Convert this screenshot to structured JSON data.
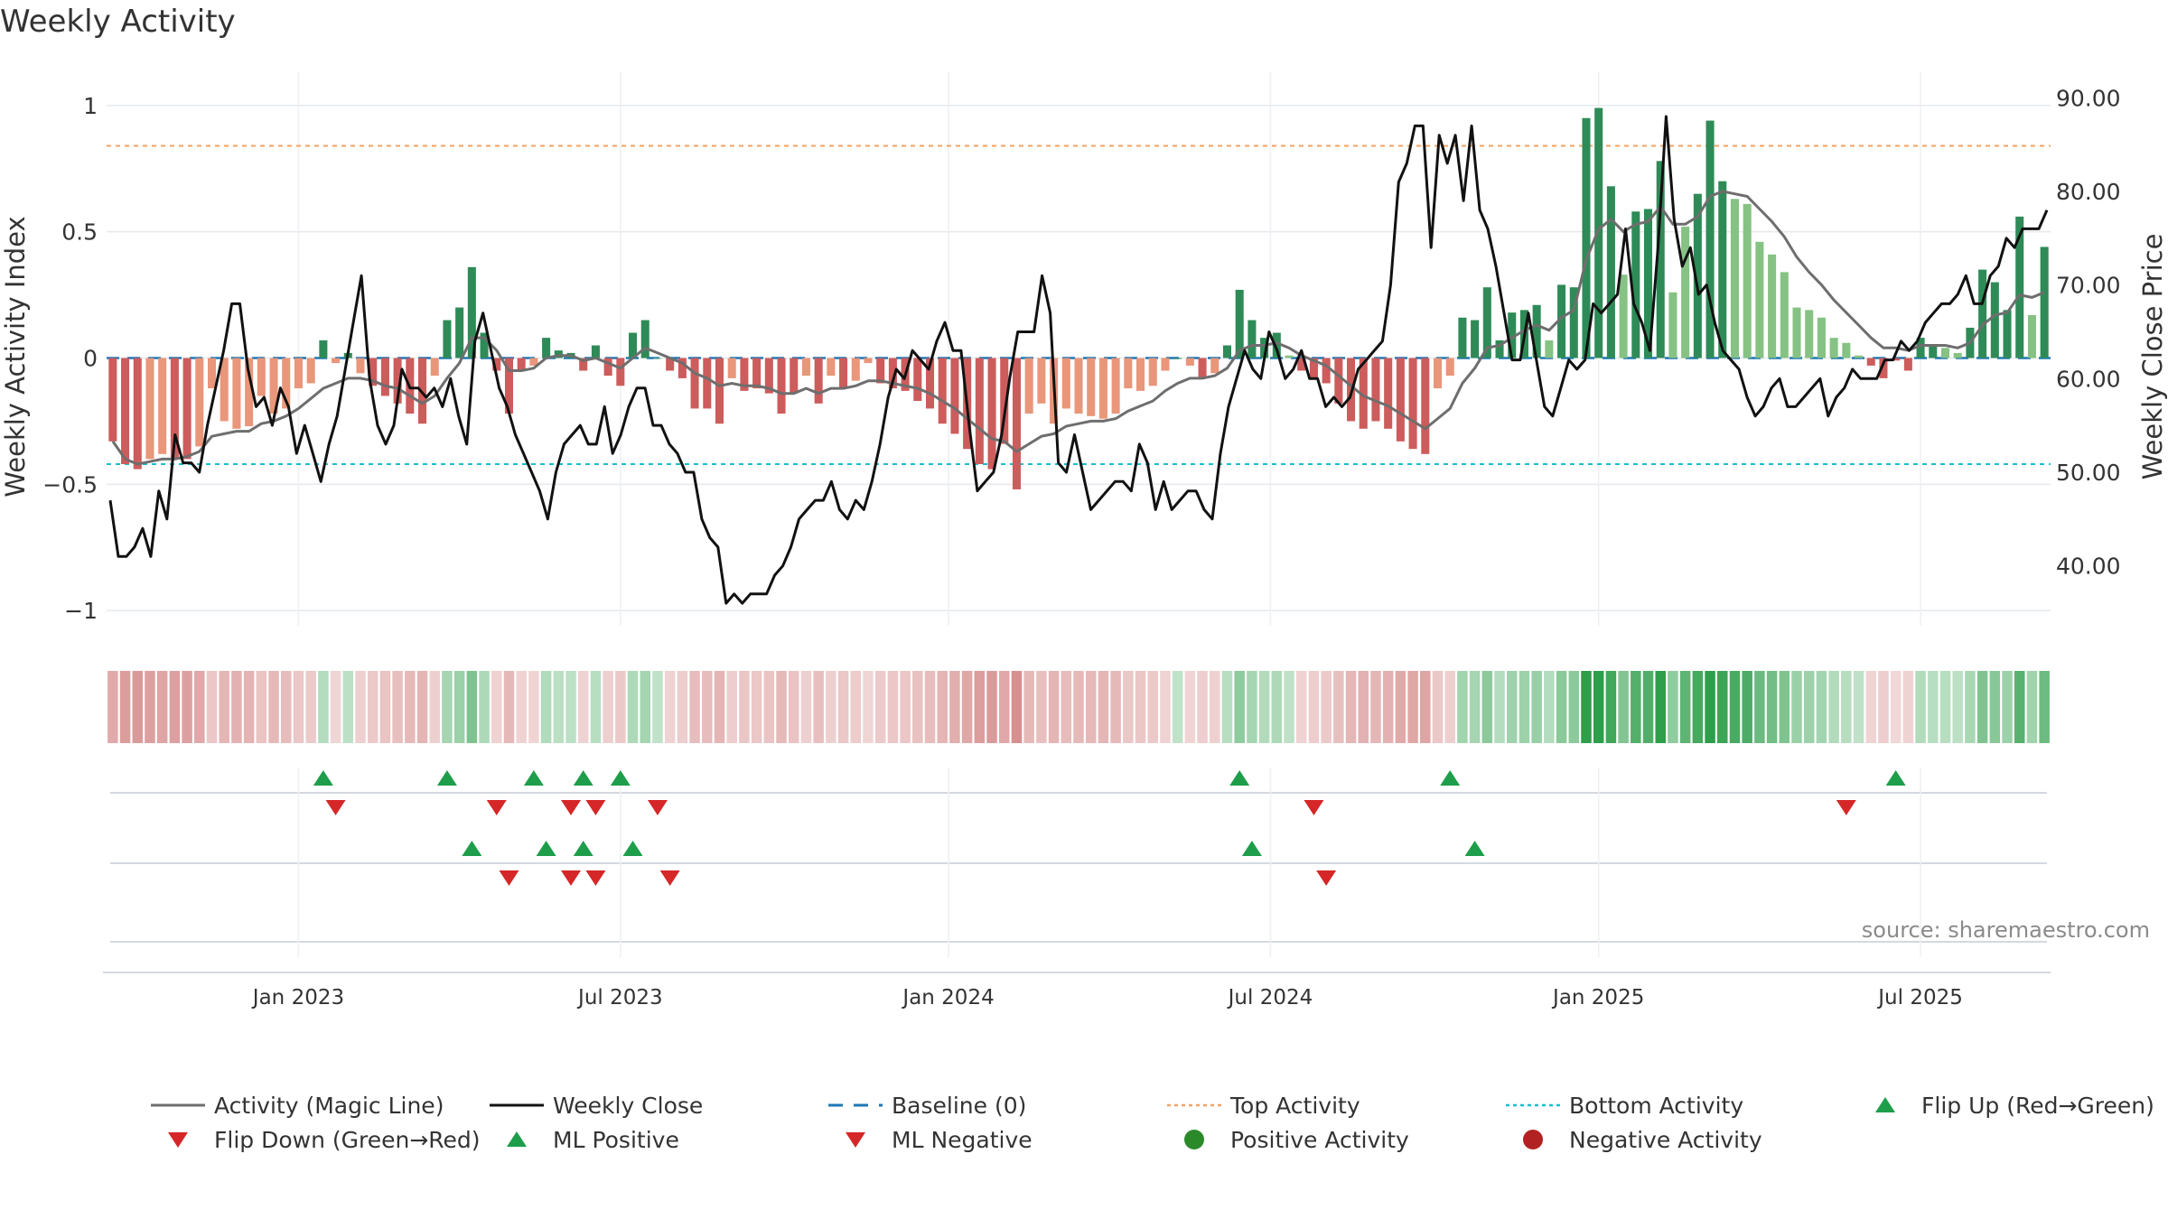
{
  "chart_data": {
    "type": "bar",
    "title": "Weekly Activity",
    "source": "source: sharemaestro.com",
    "ylabel_left": "Weekly Activity Index",
    "ylabel_right": "Weekly Close Price",
    "left_axis": {
      "range": [
        -1.06,
        1.06
      ],
      "ticks": [
        1,
        0.5,
        0,
        -0.5,
        -1
      ],
      "tick_labels": [
        "1",
        "0.5",
        "0",
        "−0.5",
        "−1"
      ]
    },
    "right_axis": {
      "range": [
        33.6,
        90.8
      ],
      "ticks": [
        90,
        80,
        70,
        60,
        50,
        40
      ],
      "tick_labels": [
        "90.00",
        "80.00",
        "70.00",
        "60.00",
        "50.00",
        "40.00"
      ]
    },
    "time_axis": {
      "first_week_index": 0,
      "ticks": [
        {
          "label": "Jan 2023",
          "week": 15
        },
        {
          "label": "Jul 2023",
          "week": 41
        },
        {
          "label": "Jan 2024",
          "week": 67.5
        },
        {
          "label": "Jul 2024",
          "week": 93.5
        },
        {
          "label": "Jan 2025",
          "week": 120
        },
        {
          "label": "Jul 2025",
          "week": 146
        }
      ]
    },
    "reference_lines": {
      "baseline": 0,
      "top_activity": 0.84,
      "bottom_activity": -0.42
    },
    "activity": [
      -0.33,
      -0.42,
      -0.44,
      -0.4,
      -0.38,
      -0.4,
      -0.4,
      -0.35,
      -0.12,
      -0.25,
      -0.28,
      -0.27,
      -0.15,
      -0.22,
      -0.2,
      -0.12,
      -0.1,
      0.07,
      -0.02,
      0.02,
      -0.06,
      -0.11,
      -0.15,
      -0.18,
      -0.22,
      -0.26,
      -0.07,
      0.15,
      0.2,
      0.36,
      0.1,
      -0.05,
      -0.22,
      -0.05,
      -0.03,
      0.08,
      0.03,
      0.02,
      -0.05,
      0.05,
      -0.07,
      -0.11,
      0.1,
      0.15,
      0.0,
      -0.05,
      -0.08,
      -0.2,
      -0.2,
      -0.26,
      -0.08,
      -0.13,
      -0.12,
      -0.14,
      -0.22,
      -0.14,
      -0.07,
      -0.18,
      -0.07,
      -0.12,
      -0.09,
      -0.02,
      -0.1,
      -0.12,
      -0.13,
      -0.17,
      -0.2,
      -0.26,
      -0.3,
      -0.36,
      -0.42,
      -0.44,
      -0.34,
      -0.52,
      -0.22,
      -0.18,
      -0.26,
      -0.2,
      -0.22,
      -0.23,
      -0.24,
      -0.22,
      -0.12,
      -0.13,
      -0.11,
      -0.05,
      0.0,
      -0.03,
      -0.08,
      -0.06,
      0.05,
      0.27,
      0.15,
      0.08,
      0.1,
      0.01,
      -0.05,
      -0.08,
      -0.1,
      -0.18,
      -0.25,
      -0.28,
      -0.25,
      -0.28,
      -0.33,
      -0.36,
      -0.38,
      -0.12,
      -0.07,
      0.16,
      0.15,
      0.28,
      0.07,
      0.18,
      0.19,
      0.21,
      0.07,
      0.29,
      0.28,
      0.95,
      0.99,
      0.68,
      0.33,
      0.58,
      0.59,
      0.78,
      0.26,
      0.52,
      0.65,
      0.94,
      0.7,
      0.63,
      0.61,
      0.46,
      0.41,
      0.34,
      0.2,
      0.19,
      0.16,
      0.08,
      0.06,
      0.01,
      -0.03,
      -0.08,
      -0.01,
      -0.05,
      0.08,
      0.05,
      0.04,
      0.02,
      0.12,
      0.35,
      0.3,
      0.19,
      0.56,
      0.17,
      0.44
    ],
    "magic_line": [
      -0.33,
      -0.4,
      -0.42,
      -0.41,
      -0.4,
      -0.4,
      -0.39,
      -0.37,
      -0.31,
      -0.3,
      -0.29,
      -0.29,
      -0.26,
      -0.25,
      -0.23,
      -0.2,
      -0.16,
      -0.12,
      -0.1,
      -0.08,
      -0.08,
      -0.09,
      -0.11,
      -0.12,
      -0.15,
      -0.18,
      -0.15,
      -0.08,
      -0.02,
      0.08,
      0.08,
      0.03,
      -0.05,
      -0.05,
      -0.04,
      -0.0,
      0.01,
      0.01,
      -0.01,
      0.0,
      -0.02,
      -0.04,
      -0.0,
      0.04,
      0.02,
      0.0,
      -0.02,
      -0.06,
      -0.08,
      -0.11,
      -0.1,
      -0.11,
      -0.11,
      -0.12,
      -0.14,
      -0.14,
      -0.12,
      -0.14,
      -0.12,
      -0.12,
      -0.11,
      -0.09,
      -0.09,
      -0.1,
      -0.11,
      -0.12,
      -0.14,
      -0.17,
      -0.2,
      -0.24,
      -0.28,
      -0.32,
      -0.33,
      -0.37,
      -0.34,
      -0.31,
      -0.3,
      -0.27,
      -0.26,
      -0.25,
      -0.25,
      -0.24,
      -0.21,
      -0.19,
      -0.17,
      -0.13,
      -0.1,
      -0.08,
      -0.08,
      -0.07,
      -0.04,
      0.03,
      0.05,
      0.05,
      0.06,
      0.04,
      0.01,
      -0.01,
      -0.03,
      -0.07,
      -0.11,
      -0.15,
      -0.17,
      -0.19,
      -0.22,
      -0.25,
      -0.28,
      -0.24,
      -0.2,
      -0.1,
      -0.04,
      0.04,
      0.05,
      0.08,
      0.11,
      0.13,
      0.11,
      0.16,
      0.19,
      0.39,
      0.51,
      0.55,
      0.5,
      0.53,
      0.54,
      0.6,
      0.53,
      0.53,
      0.56,
      0.64,
      0.66,
      0.65,
      0.64,
      0.59,
      0.54,
      0.48,
      0.4,
      0.34,
      0.29,
      0.23,
      0.18,
      0.13,
      0.08,
      0.04,
      0.04,
      0.03,
      0.05,
      0.05,
      0.05,
      0.04,
      0.06,
      0.13,
      0.17,
      0.18,
      0.25,
      0.24,
      0.26
    ],
    "weekly_close": [
      47,
      41,
      41,
      42,
      44,
      41,
      48,
      45,
      54,
      51,
      51,
      50,
      55,
      59,
      63,
      68,
      68,
      61,
      57,
      58,
      55,
      59,
      57,
      52,
      55,
      52,
      49,
      53,
      56,
      61,
      66,
      71,
      60,
      55,
      53,
      55,
      61,
      59,
      59,
      58,
      59,
      57,
      60,
      56,
      53,
      64,
      67,
      63,
      59,
      57,
      54,
      52,
      50,
      48,
      45,
      50,
      53,
      54,
      55,
      53,
      53,
      57,
      52,
      54,
      57,
      59,
      59,
      55,
      55,
      53,
      52,
      50,
      50,
      45,
      43,
      42,
      36,
      37,
      36,
      37,
      37,
      37,
      39,
      40,
      42,
      45,
      46,
      47,
      47,
      49,
      46,
      45,
      47,
      46,
      49,
      53,
      58,
      61,
      60,
      63,
      62,
      61,
      64,
      66,
      63,
      63,
      55,
      48,
      49,
      50,
      54,
      60,
      65,
      65,
      65,
      71,
      67,
      51,
      50,
      54,
      50,
      46,
      47,
      48,
      49,
      49,
      48,
      53,
      51,
      46,
      49,
      46,
      47,
      48,
      48,
      46,
      45,
      52,
      57,
      60,
      63,
      61,
      60,
      65,
      63,
      60,
      61,
      63,
      60,
      60,
      57,
      58,
      57,
      58,
      61,
      62,
      63,
      64,
      70,
      81,
      83,
      87,
      87,
      74,
      86,
      83,
      86,
      79,
      87,
      78,
      76,
      72,
      67,
      62,
      62,
      67,
      62,
      57,
      56,
      59,
      62,
      61,
      62,
      68,
      67,
      68,
      69,
      76,
      68,
      66,
      63,
      74,
      88,
      77,
      72,
      74,
      69,
      70,
      66,
      63,
      62,
      61,
      58,
      56,
      57,
      59,
      60,
      57,
      57,
      58,
      59,
      60,
      56,
      58,
      59,
      61,
      60,
      60,
      60,
      62,
      62,
      64,
      63,
      64,
      66,
      67,
      68,
      68,
      69,
      71,
      68,
      68,
      71,
      72,
      75,
      74,
      76,
      76,
      76,
      78
    ],
    "heat_strip": "week colour of every activity bar is repeated as a heat strip below the main panel",
    "flip_up_weeks": [
      17,
      27,
      34,
      38,
      41,
      91,
      108,
      144
    ],
    "flip_down_weeks": [
      18,
      31,
      37,
      39,
      44,
      97,
      140
    ],
    "ml_positive_weeks": [
      29,
      35,
      38,
      42,
      92,
      110
    ],
    "ml_negative_weeks": [
      32,
      37,
      39,
      45,
      98
    ],
    "legend": [
      {
        "label": "Activity (Magic Line)",
        "symbol": "line",
        "color": "#6e6e6e"
      },
      {
        "label": "Weekly Close",
        "symbol": "line",
        "color": "#111111"
      },
      {
        "label": "Baseline (0)",
        "symbol": "dash",
        "color": "#1f77b4"
      },
      {
        "label": "Top Activity",
        "symbol": "dot-line",
        "color": "#f4a261"
      },
      {
        "label": "Bottom Activity",
        "symbol": "dot-line",
        "color": "#17becf"
      },
      {
        "label": "Flip Up (Red→Green)",
        "symbol": "triangle-up",
        "color": "#1e9e4a"
      },
      {
        "label": "Flip Down (Green→Red)",
        "symbol": "triangle-down",
        "color": "#d62728"
      },
      {
        "label": "ML Positive",
        "symbol": "triangle-up",
        "color": "#1e9e4a"
      },
      {
        "label": "ML Negative",
        "symbol": "triangle-down",
        "color": "#d62728"
      },
      {
        "label": "Positive Activity",
        "symbol": "circle",
        "color": "#2a8a2a"
      },
      {
        "label": "Negative Activity",
        "symbol": "circle",
        "color": "#b22222"
      }
    ],
    "colors": {
      "pos_strong": "#2e8b57",
      "pos_weak": "#86c283",
      "neg_strong": "#cd5c5c",
      "neg_weak": "#e9967a",
      "magic_line": "#6e6e6e",
      "close_line": "#111111"
    }
  }
}
